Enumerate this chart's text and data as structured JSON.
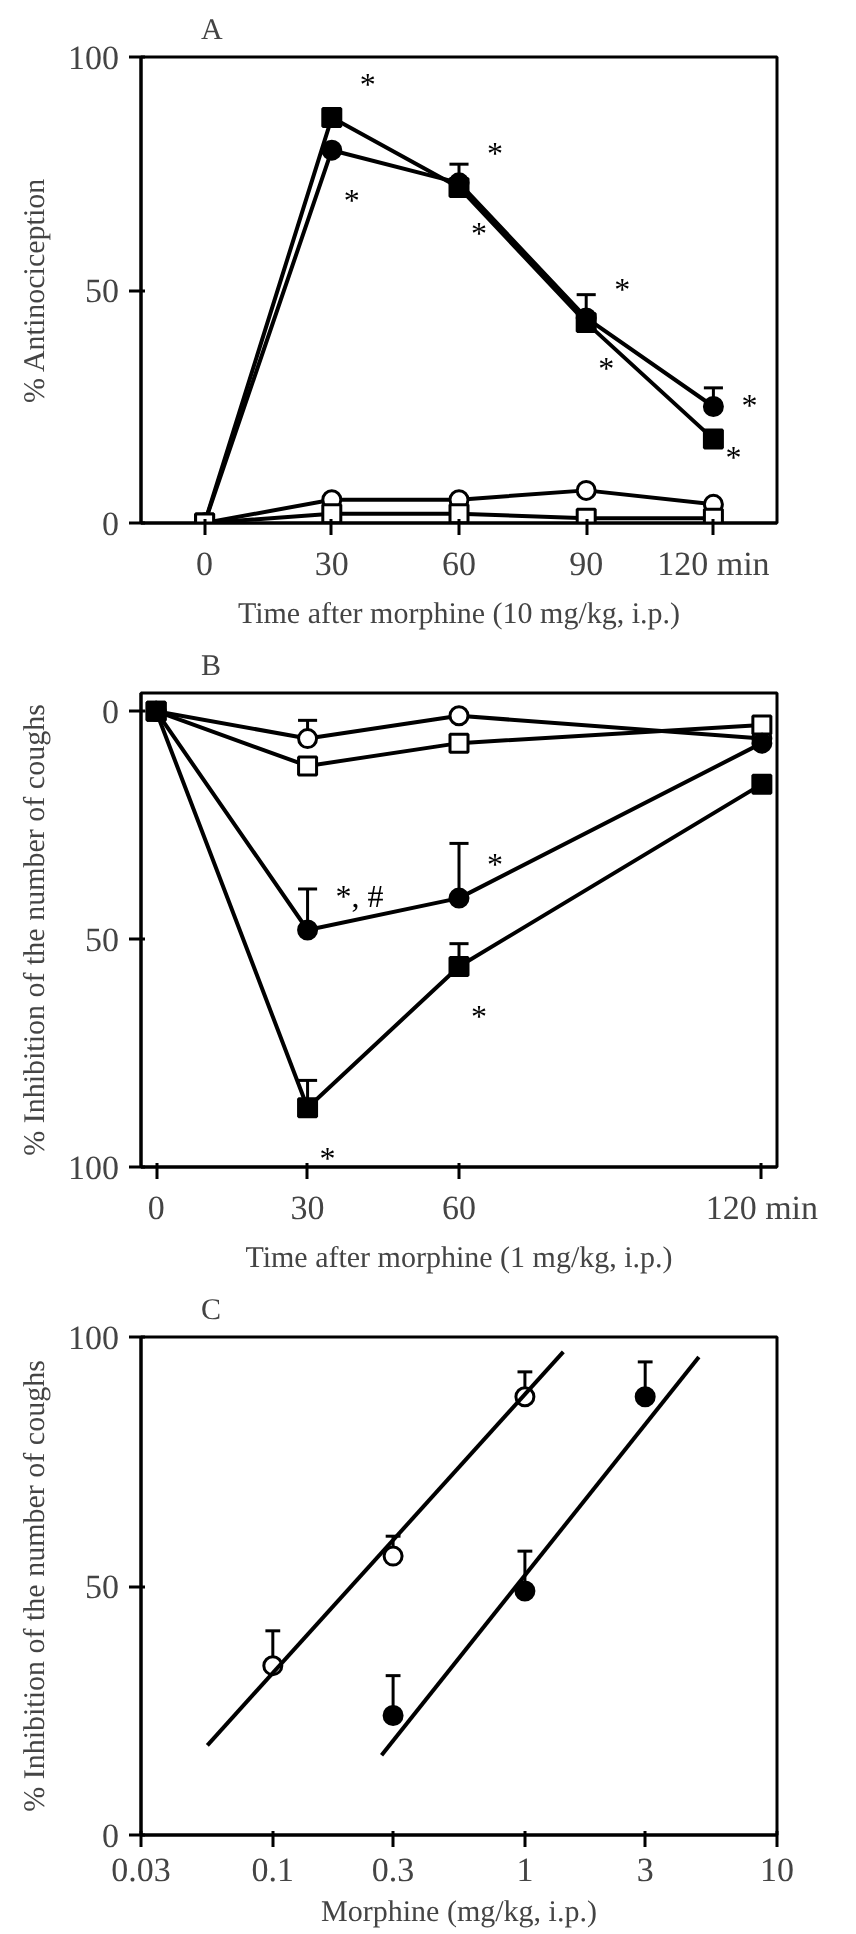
{
  "chart_data": [
    {
      "type": "line",
      "title": "A",
      "xlabel": "Time after morphine (10 mg/kg, i.p.)",
      "ylabel": "% Antinociception",
      "x": [
        0,
        30,
        60,
        90,
        120
      ],
      "xlim": [
        -15,
        135
      ],
      "ylim": [
        0,
        100
      ],
      "xticks": [
        0,
        30,
        60,
        90,
        {
          "value": 120,
          "label": "120 min"
        }
      ],
      "yticks": [
        0,
        50,
        100
      ],
      "grid": false,
      "series": [
        {
          "color": "#000000",
          "marker": "square",
          "values": [
            0,
            87,
            72,
            43,
            18
          ],
          "value_labels": [
            null,
            "*",
            "*",
            "*",
            "*"
          ]
        },
        {
          "color": "#000000",
          "marker": "circle",
          "values": [
            0,
            80,
            73,
            44,
            25
          ],
          "errors": [
            null,
            null,
            [
              73,
              77
            ],
            [
              44,
              49
            ],
            [
              25,
              29
            ]
          ],
          "value_labels": [
            null,
            "*",
            "*",
            "*",
            "*"
          ]
        },
        {
          "color": "#ffffff",
          "marker": "circle",
          "values": [
            0,
            5,
            5,
            7,
            4
          ]
        },
        {
          "color": "#ffffff",
          "marker": "square",
          "values": [
            0,
            2,
            2,
            1,
            1
          ]
        }
      ]
    },
    {
      "type": "line",
      "title": "B",
      "xlabel": "Time after morphine (1 mg/kg, i.p.)",
      "ylabel": "% Inhibition of the number of coughs",
      "x": [
        0,
        30,
        60,
        120
      ],
      "xlim": [
        -3,
        123
      ],
      "ylim": [
        100,
        -4
      ],
      "xticks": [
        0,
        30,
        60,
        {
          "value": 120,
          "label": "120 min"
        }
      ],
      "yticks": [
        0,
        50,
        100
      ],
      "grid": false,
      "series": [
        {
          "color": "#ffffff",
          "marker": "circle",
          "values": [
            0,
            6,
            1,
            6
          ],
          "errors": [
            null,
            [
              2,
              6
            ],
            null,
            null
          ]
        },
        {
          "color": "#ffffff",
          "marker": "square",
          "values": [
            0,
            12,
            7,
            3
          ]
        },
        {
          "color": "#000000",
          "marker": "circle",
          "values": [
            0,
            48,
            41,
            7
          ],
          "errors": [
            null,
            [
              39,
              48
            ],
            [
              29,
              41
            ],
            null
          ],
          "value_labels": [
            null,
            "*, #",
            "*",
            null
          ]
        },
        {
          "color": "#000000",
          "marker": "square",
          "values": [
            0,
            87,
            56,
            16
          ],
          "errors": [
            null,
            [
              81,
              87
            ],
            [
              51,
              56
            ],
            null
          ],
          "value_labels": [
            null,
            "*",
            "*",
            null
          ]
        }
      ]
    },
    {
      "type": "scatter",
      "title": "C",
      "xlabel": "Morphine (mg/kg, i.p.)",
      "ylabel": "% Inhibition of the number of coughs",
      "log": "x",
      "xlim": [
        0.03,
        10
      ],
      "ylim": [
        0,
        100
      ],
      "xticks": [
        0.03,
        0.1,
        0.3,
        1,
        3,
        10
      ],
      "yticks": [
        0,
        50,
        100
      ],
      "grid": false,
      "series": [
        {
          "color": "#ffffff",
          "marker": "circle",
          "x": [
            0.1,
            0.3,
            1
          ],
          "values": [
            34,
            56,
            88
          ],
          "errors": [
            [
              34,
              41
            ],
            [
              56,
              60
            ],
            [
              88,
              93
            ]
          ]
        },
        {
          "color": "#000000",
          "marker": "circle",
          "x": [
            0.3,
            1,
            3
          ],
          "values": [
            24,
            49,
            88
          ],
          "errors": [
            [
              24,
              32
            ],
            [
              49,
              57
            ],
            [
              88,
              95
            ]
          ]
        },
        {
          "type": "line",
          "color": "#000000",
          "marker": "none",
          "x": [
            0.055,
            1.42
          ],
          "values": [
            18,
            97
          ]
        },
        {
          "type": "line",
          "color": "#000000",
          "marker": "none",
          "x": [
            0.27,
            4.9
          ],
          "values": [
            16,
            96
          ]
        }
      ]
    }
  ]
}
